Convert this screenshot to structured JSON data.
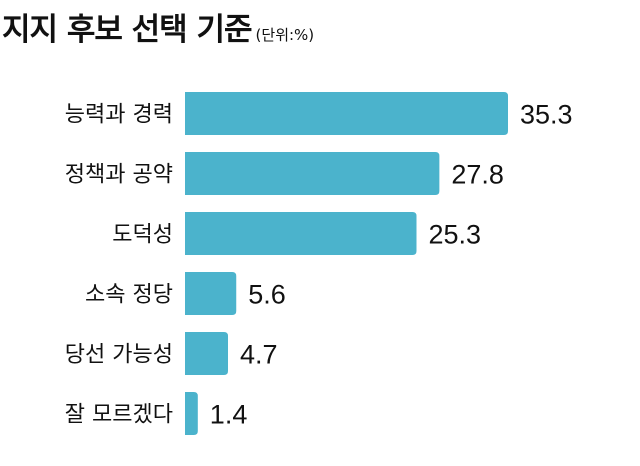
{
  "chart_data": {
    "type": "bar",
    "orientation": "horizontal",
    "title": "지지 후보 선택 기준",
    "unit": "(단위:%)",
    "categories": [
      "능력과 경력",
      "정책과 공약",
      "도덕성",
      "소속 정당",
      "당선 가능성",
      "잘 모르겠다"
    ],
    "values": [
      35.3,
      27.8,
      25.3,
      5.6,
      4.7,
      1.4
    ],
    "value_labels": [
      "35.3",
      "27.8",
      "25.3",
      "5.6",
      "4.7",
      "1.4"
    ],
    "xlim": [
      0,
      35.3
    ],
    "bar_color": "#4bb3cc",
    "grid": false,
    "xlabel": "",
    "ylabel": ""
  }
}
